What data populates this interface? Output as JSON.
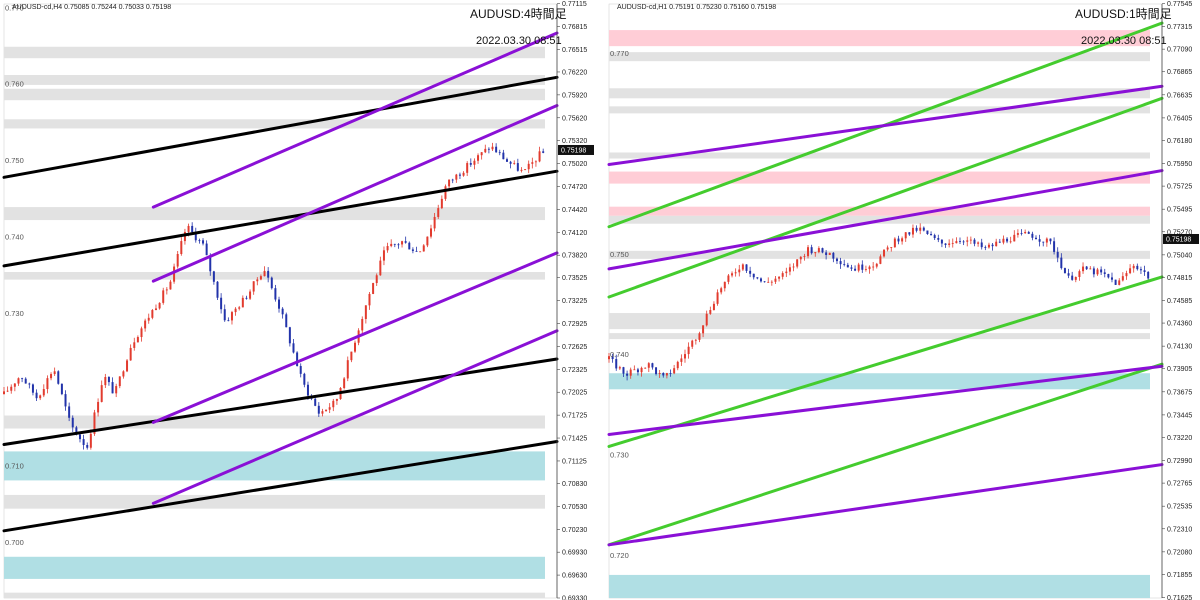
{
  "charts": [
    {
      "info": "AUDUSD-cd,H4  0.75085 0.75244 0.75033 0.75198",
      "title": "AUDUSD:4時間足",
      "date": "2022.03.30 08:51",
      "current_price": "0.75198",
      "level_labels": [
        "0.770",
        "0.760",
        "0.750",
        "0.740",
        "0.730",
        "0.710",
        "0.700"
      ],
      "axis_ticks": [
        "0.77115",
        "0.76815",
        "0.76515",
        "0.76220",
        "0.75920",
        "0.75620",
        "0.75320",
        "0.75020",
        "0.74720",
        "0.74420",
        "0.74120",
        "0.73820",
        "0.73525",
        "0.73225",
        "0.72925",
        "0.72625",
        "0.72325",
        "0.72025",
        "0.71725",
        "0.71425",
        "0.71125",
        "0.70830",
        "0.70530",
        "0.70230",
        "0.69930",
        "0.69630",
        "0.69330"
      ]
    },
    {
      "info": "AUDUSD-cd,H1  0.75191 0.75230 0.75160 0.75198",
      "title": "AUDUSD:1時間足",
      "date": "2022.03.30 08:51",
      "current_price": "0.75198",
      "level_labels": [
        "0.770",
        "0.750",
        "0.740",
        "0.730",
        "0.720"
      ],
      "axis_ticks": [
        "0.77545",
        "0.77315",
        "0.77090",
        "0.76865",
        "0.76635",
        "0.76405",
        "0.76180",
        "0.75950",
        "0.75725",
        "0.75495",
        "0.75270",
        "0.75040",
        "0.74815",
        "0.74585",
        "0.74360",
        "0.74130",
        "0.73905",
        "0.73675",
        "0.73445",
        "0.73220",
        "0.72990",
        "0.72765",
        "0.72535",
        "0.72310",
        "0.72080",
        "0.71855",
        "0.71625"
      ]
    }
  ],
  "chart_data": [
    {
      "type": "candlestick",
      "symbol": "AUDUSD-cd",
      "timeframe": "H4",
      "ylim": [
        0.6933,
        0.7711
      ],
      "zones_gray": [
        [
          0.764,
          0.7655
        ],
        [
          0.7605,
          0.7618
        ],
        [
          0.7585,
          0.76
        ],
        [
          0.7548,
          0.756
        ],
        [
          0.7428,
          0.7445
        ],
        [
          0.735,
          0.736
        ],
        [
          0.7155,
          0.7172
        ],
        [
          0.705,
          0.7068
        ],
        [
          0.6933,
          0.694
        ]
      ],
      "zones_blue": [
        [
          0.7087,
          0.7125
        ],
        [
          0.6958,
          0.6987
        ]
      ],
      "trendlines_black": [
        [
          [
            0,
            0.7484
          ],
          [
            1,
            0.7615
          ]
        ],
        [
          [
            0,
            0.7368
          ],
          [
            1,
            0.7492
          ]
        ],
        [
          [
            0,
            0.7134
          ],
          [
            1,
            0.7246
          ]
        ],
        [
          [
            0,
            0.7021
          ],
          [
            1,
            0.7138
          ]
        ]
      ],
      "trendlines_purple": [
        [
          [
            0.27,
            0.7445
          ],
          [
            1,
            0.7673
          ]
        ],
        [
          [
            0.27,
            0.7348
          ],
          [
            1,
            0.7578
          ]
        ],
        [
          [
            0.27,
            0.7163
          ],
          [
            1,
            0.7385
          ]
        ],
        [
          [
            0.27,
            0.7057
          ],
          [
            1,
            0.7283
          ]
        ]
      ],
      "price_path": [
        [
          0,
          0.72
        ],
        [
          0.03,
          0.7225
        ],
        [
          0.06,
          0.7195
        ],
        [
          0.09,
          0.7235
        ],
        [
          0.12,
          0.716
        ],
        [
          0.15,
          0.713
        ],
        [
          0.18,
          0.7225
        ],
        [
          0.2,
          0.72
        ],
        [
          0.23,
          0.7265
        ],
        [
          0.26,
          0.73
        ],
        [
          0.3,
          0.7345
        ],
        [
          0.33,
          0.742
        ],
        [
          0.36,
          0.7395
        ],
        [
          0.4,
          0.7295
        ],
        [
          0.44,
          0.733
        ],
        [
          0.47,
          0.7365
        ],
        [
          0.5,
          0.731
        ],
        [
          0.54,
          0.7215
        ],
        [
          0.57,
          0.7175
        ],
        [
          0.6,
          0.719
        ],
        [
          0.63,
          0.726
        ],
        [
          0.66,
          0.733
        ],
        [
          0.69,
          0.739
        ],
        [
          0.72,
          0.74
        ],
        [
          0.75,
          0.7385
        ],
        [
          0.77,
          0.7415
        ],
        [
          0.8,
          0.7475
        ],
        [
          0.84,
          0.75
        ],
        [
          0.88,
          0.7525
        ],
        [
          0.91,
          0.7505
        ],
        [
          0.94,
          0.749
        ],
        [
          0.97,
          0.7515
        ],
        [
          1.0,
          0.752
        ]
      ]
    },
    {
      "type": "candlestick",
      "symbol": "AUDUSD-cd",
      "timeframe": "H1",
      "ylim": [
        0.7162,
        0.7754
      ],
      "zones_gray": [
        [
          0.7697,
          0.7706
        ],
        [
          0.766,
          0.767
        ],
        [
          0.7645,
          0.7652
        ],
        [
          0.76,
          0.7606
        ],
        [
          0.7535,
          0.7543
        ],
        [
          0.75,
          0.7508
        ],
        [
          0.743,
          0.7446
        ],
        [
          0.742,
          0.7426
        ]
      ],
      "zones_pink": [
        [
          0.7712,
          0.7728
        ],
        [
          0.7575,
          0.7587
        ],
        [
          0.7543,
          0.7552
        ]
      ],
      "zones_blue": [
        [
          0.737,
          0.7386
        ],
        [
          0.7162,
          0.7185
        ]
      ],
      "trendlines_green": [
        [
          [
            0,
            0.7532
          ],
          [
            1,
            0.7735
          ]
        ],
        [
          [
            0,
            0.7462
          ],
          [
            1,
            0.766
          ]
        ],
        [
          [
            0,
            0.7313
          ],
          [
            1,
            0.7482
          ]
        ],
        [
          [
            0,
            0.7215
          ],
          [
            1,
            0.7395
          ]
        ]
      ],
      "trendlines_purple": [
        [
          [
            0,
            0.7594
          ],
          [
            1,
            0.7672
          ]
        ],
        [
          [
            0,
            0.749
          ],
          [
            1,
            0.7588
          ]
        ],
        [
          [
            0,
            0.7325
          ],
          [
            1,
            0.7393
          ]
        ],
        [
          [
            0,
            0.7215
          ],
          [
            1,
            0.7295
          ]
        ]
      ],
      "price_path": [
        [
          0,
          0.74
        ],
        [
          0.03,
          0.7385
        ],
        [
          0.07,
          0.7395
        ],
        [
          0.1,
          0.738
        ],
        [
          0.13,
          0.74
        ],
        [
          0.16,
          0.7425
        ],
        [
          0.2,
          0.747
        ],
        [
          0.24,
          0.7495
        ],
        [
          0.28,
          0.7475
        ],
        [
          0.32,
          0.7485
        ],
        [
          0.36,
          0.751
        ],
        [
          0.4,
          0.7505
        ],
        [
          0.44,
          0.749
        ],
        [
          0.48,
          0.7495
        ],
        [
          0.52,
          0.752
        ],
        [
          0.56,
          0.753
        ],
        [
          0.6,
          0.7515
        ],
        [
          0.64,
          0.752
        ],
        [
          0.68,
          0.751
        ],
        [
          0.72,
          0.752
        ],
        [
          0.76,
          0.7525
        ],
        [
          0.8,
          0.7515
        ],
        [
          0.83,
          0.748
        ],
        [
          0.86,
          0.749
        ],
        [
          0.89,
          0.7485
        ],
        [
          0.92,
          0.7475
        ],
        [
          0.95,
          0.7495
        ],
        [
          0.98,
          0.748
        ],
        [
          1.0,
          0.752
        ]
      ]
    }
  ]
}
